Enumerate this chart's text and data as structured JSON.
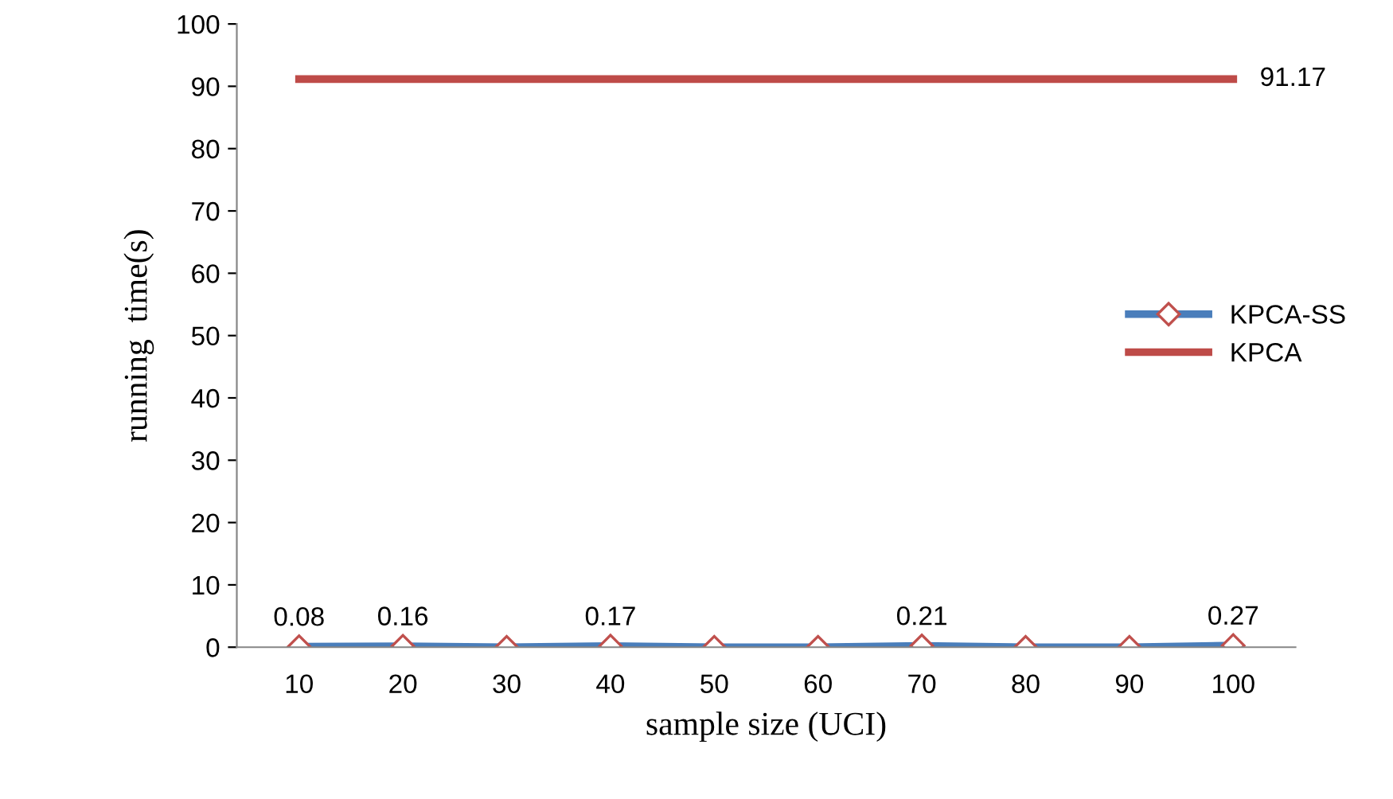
{
  "chart_data": {
    "type": "line",
    "xlabel": "sample size (UCI)",
    "ylabel": "running  time(s)",
    "categories": [
      "10",
      "20",
      "30",
      "40",
      "50",
      "60",
      "70",
      "80",
      "90",
      "100"
    ],
    "series": [
      {
        "name": "KPCA-SS",
        "color": "#4a7ebb",
        "marker": "diamond",
        "values": [
          0.08,
          0.16,
          0,
          0.17,
          0,
          0,
          0.21,
          0,
          0,
          0.27
        ],
        "value_labels": [
          "0.08",
          "0.16",
          null,
          "0.17",
          null,
          null,
          "0.21",
          null,
          null,
          "0.27"
        ]
      },
      {
        "name": "KPCA",
        "color": "#be4b48",
        "marker": "none",
        "values": [
          91.17,
          91.17,
          91.17,
          91.17,
          91.17,
          91.17,
          91.17,
          91.17,
          91.17,
          91.17
        ],
        "value_labels": [
          null,
          null,
          null,
          null,
          null,
          null,
          null,
          null,
          null,
          "91.17"
        ]
      }
    ],
    "ylim": [
      0,
      100
    ],
    "yticks": [
      0,
      10,
      20,
      30,
      40,
      50,
      60,
      70,
      80,
      90,
      100
    ],
    "grid": false,
    "legend": "right",
    "line_style": "solid"
  }
}
